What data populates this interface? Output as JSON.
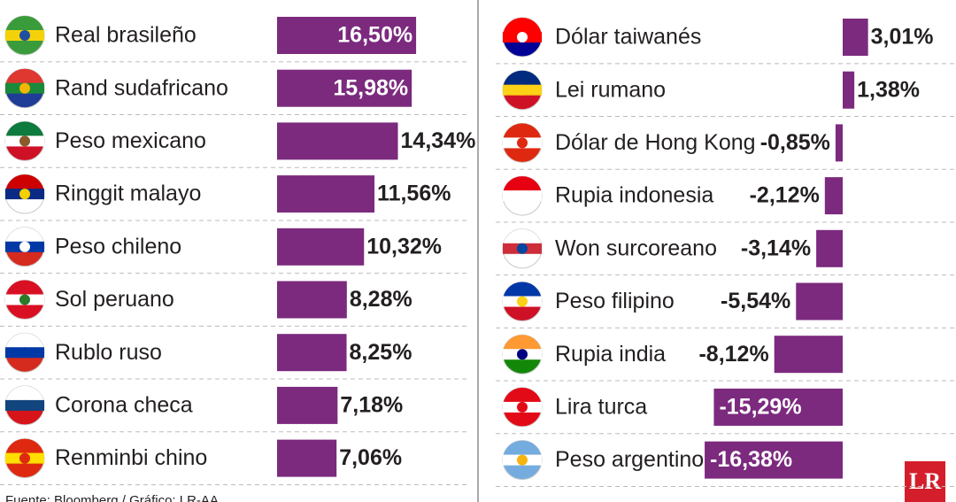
{
  "chart_data": [
    {
      "type": "bar",
      "orientation": "horizontal",
      "color": "#7b2a7e",
      "categories": [
        "Real brasileño",
        "Rand sudafricano",
        "Peso mexicano",
        "Ringgit malayo",
        "Peso chileno",
        "Sol peruano",
        "Rublo ruso",
        "Corona checa",
        "Renminbi chino"
      ],
      "values": [
        16.5,
        15.98,
        14.34,
        11.56,
        10.32,
        8.28,
        8.25,
        7.18,
        7.06
      ],
      "value_labels": [
        "16,50%",
        "15,98%",
        "14,34%",
        "11,56%",
        "10,32%",
        "8,28%",
        "8,25%",
        "7,18%",
        "7,06%"
      ],
      "source": "Fuente: Bloomberg / Gráfico: LR-AA"
    },
    {
      "type": "bar",
      "orientation": "horizontal",
      "color": "#7b2a7e",
      "categories": [
        "Dólar taiwanés",
        "Lei rumano",
        "Dólar de Hong Kong",
        "Rupia indonesia",
        "Won surcoreano",
        "Peso filipino",
        "Rupia india",
        "Lira turca",
        "Peso argentino"
      ],
      "values": [
        3.01,
        1.38,
        -0.85,
        -2.12,
        -3.14,
        -5.54,
        -8.12,
        -15.29,
        -16.38
      ],
      "value_labels": [
        "3,01%",
        "1,38%",
        "-0,85%",
        "-2,12%",
        "-3,14%",
        "-5,54%",
        "-8,12%",
        "-15,29%",
        "-16,38%"
      ],
      "logo": "LR"
    }
  ]
}
